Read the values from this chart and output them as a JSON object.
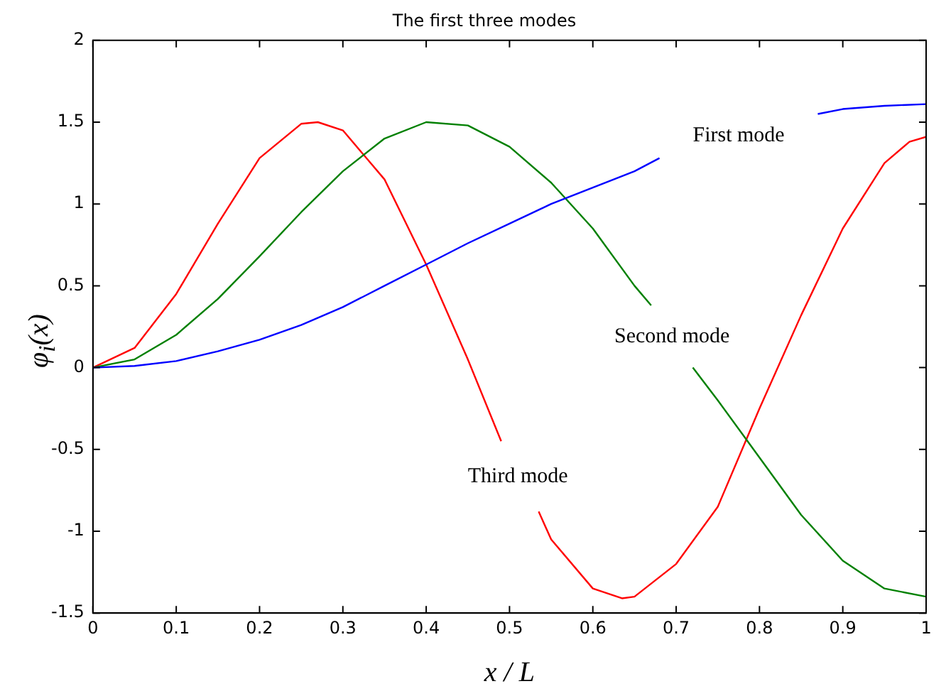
{
  "chart_data": {
    "type": "line",
    "title": "The first three modes",
    "xlabel": "x / L",
    "ylabel": "φ$_{i}$(x)",
    "xlim": [
      0,
      1
    ],
    "xticks": [
      0,
      0.1,
      0.2,
      0.3,
      0.4,
      0.5,
      0.6,
      0.7,
      0.8,
      0.9,
      1
    ],
    "ylim": [
      -1.5,
      2
    ],
    "yticks": [
      -1.5,
      -1,
      -0.5,
      0,
      0.5,
      1,
      1.5,
      2
    ],
    "grid": false,
    "legend": false,
    "marker": "none",
    "line_style": "solid",
    "series": [
      {
        "name": "First mode",
        "color": "#0000ff",
        "x": [
          0,
          0.05,
          0.1,
          0.15,
          0.2,
          0.25,
          0.3,
          0.35,
          0.4,
          0.45,
          0.5,
          0.55,
          0.6,
          0.65,
          0.68,
          0.775,
          0.87,
          0.9,
          0.95,
          1
        ],
        "values": [
          0,
          0.01,
          0.04,
          0.1,
          0.17,
          0.26,
          0.37,
          0.5,
          0.63,
          0.76,
          0.88,
          1,
          1.1,
          1.2,
          1.28,
          null,
          1.55,
          1.58,
          1.6,
          1.61
        ]
      },
      {
        "name": "Second mode",
        "color": "#008000",
        "x": [
          0,
          0.05,
          0.1,
          0.15,
          0.2,
          0.25,
          0.3,
          0.35,
          0.4,
          0.45,
          0.5,
          0.55,
          0.6,
          0.65,
          0.67,
          0.695,
          0.72,
          0.75,
          0.8,
          0.85,
          0.9,
          0.95,
          1
        ],
        "values": [
          0,
          0.05,
          0.2,
          0.42,
          0.68,
          0.95,
          1.2,
          1.4,
          1.5,
          1.48,
          1.35,
          1.13,
          0.85,
          0.5,
          0.38,
          null,
          0,
          -0.2,
          -0.55,
          -0.9,
          -1.18,
          -1.35,
          -1.4
        ]
      },
      {
        "name": "Third mode",
        "color": "#ff0000",
        "x": [
          0,
          0.05,
          0.1,
          0.15,
          0.2,
          0.25,
          0.27,
          0.3,
          0.35,
          0.4,
          0.45,
          0.49,
          0.51,
          0.535,
          0.55,
          0.6,
          0.635,
          0.65,
          0.7,
          0.75,
          0.8,
          0.85,
          0.9,
          0.95,
          0.98,
          1
        ],
        "values": [
          0,
          0.12,
          0.45,
          0.88,
          1.28,
          1.49,
          1.5,
          1.45,
          1.15,
          0.63,
          0.05,
          -0.45,
          null,
          -0.88,
          -1.05,
          -1.35,
          -1.41,
          -1.4,
          -1.2,
          -0.85,
          -0.25,
          0.32,
          0.85,
          1.25,
          1.38,
          1.41
        ]
      }
    ]
  }
}
